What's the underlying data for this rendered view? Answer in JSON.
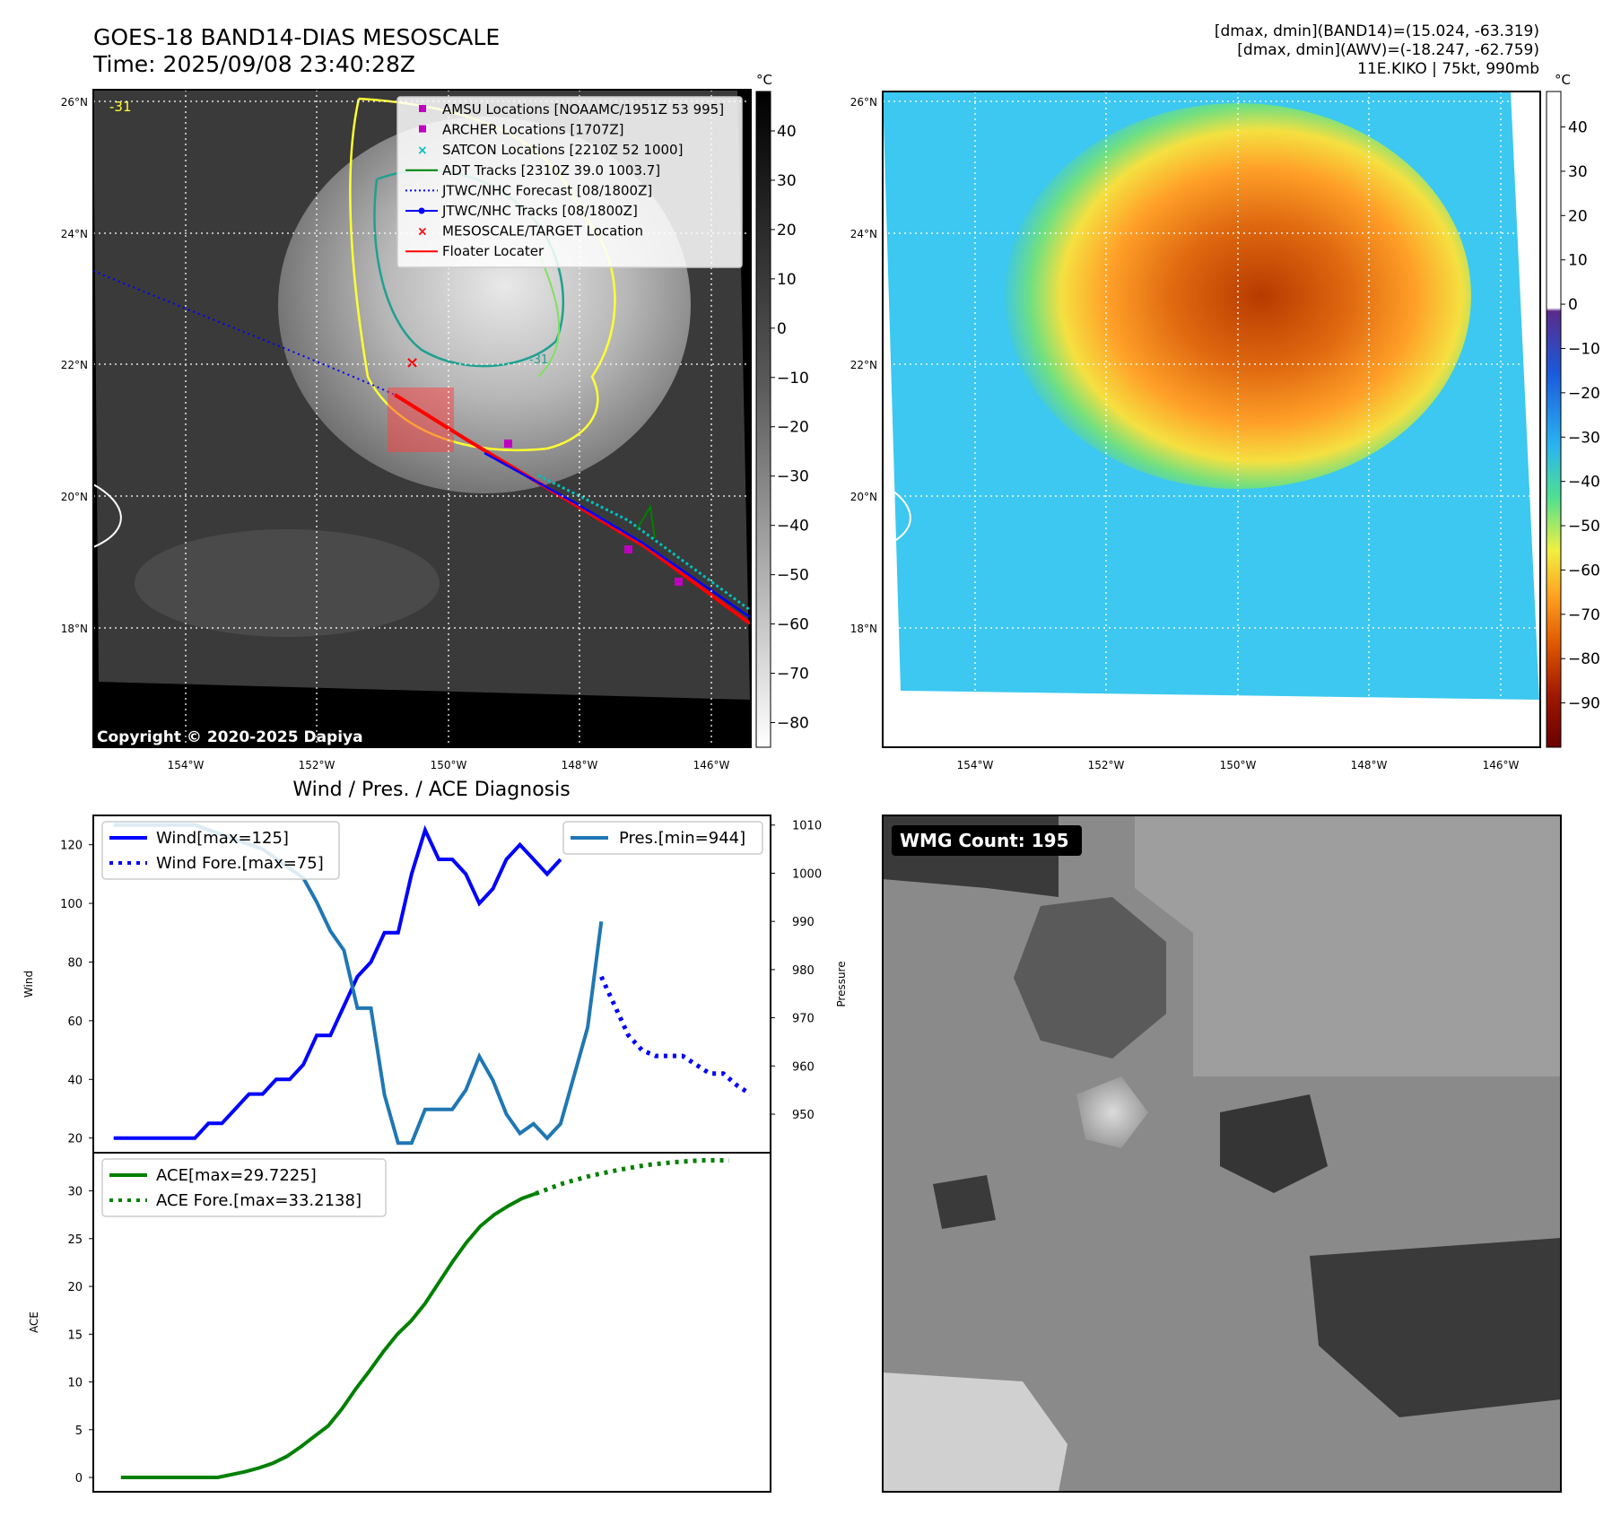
{
  "header": {
    "title_line1": "GOES-18 BAND14-DIAS MESOSCALE",
    "title_line2": "Time: 2025/09/08 23:40:28Z",
    "stats_line1": "[dmax, dmin](BAND14)=(15.024, -63.319)",
    "stats_line2": "[dmax, dmin](AWV)=(-18.247, -62.759)",
    "stats_line3": "11E.KIKO | 75kt, 990mb"
  },
  "maps": {
    "lat_labels": [
      "26°N",
      "24°N",
      "22°N",
      "20°N",
      "18°N"
    ],
    "lon_labels": [
      "154°W",
      "152°W",
      "150°W",
      "148°W",
      "146°W"
    ],
    "copyright": "Copyright © 2020-2025 Dapiya",
    "contour_label": "-31",
    "contour_label2": "-31"
  },
  "ir_colorbar": {
    "unit": "°C",
    "ticks": [
      "40",
      "30",
      "20",
      "10",
      "0",
      "−10",
      "−20",
      "−30",
      "−40",
      "−50",
      "−60",
      "−70",
      "−80"
    ]
  },
  "color_colorbar": {
    "unit": "°C",
    "ticks": [
      "40",
      "30",
      "20",
      "10",
      "0",
      "−10",
      "−20",
      "−30",
      "−40",
      "−50",
      "−60",
      "−70",
      "−80",
      "−90"
    ]
  },
  "map_legend": [
    {
      "label": "AMSU Locations [NOAAMC/1951Z 53 995]",
      "color": "#c000c0",
      "kind": "square"
    },
    {
      "label": "ARCHER Locations [1707Z]",
      "color": "#c000c0",
      "kind": "square"
    },
    {
      "label": "SATCON Locations [2210Z 52 1000]",
      "color": "#00c0c0",
      "kind": "x"
    },
    {
      "label": "ADT Tracks [2310Z 39.0 1003.7]",
      "color": "#008000",
      "kind": "line"
    },
    {
      "label": "JTWC/NHC Forecast [08/1800Z]",
      "color": "#0000ff",
      "kind": "dotted"
    },
    {
      "label": "JTWC/NHC Tracks [08/1800Z]",
      "color": "#0000ff",
      "kind": "linedot"
    },
    {
      "label": "MESOSCALE/TARGET Location",
      "color": "#ff0000",
      "kind": "x"
    },
    {
      "label": "Floater Locater",
      "color": "#ff0000",
      "kind": "line"
    }
  ],
  "wmg": {
    "label": "WMG Count: 195"
  },
  "chart_data": [
    {
      "type": "line",
      "title": "Wind / Pres. / ACE Diagnosis",
      "ylabel": "Wind",
      "ylim": [
        15,
        130
      ],
      "yticks": [
        20,
        40,
        60,
        80,
        100,
        120
      ],
      "x": [
        0,
        1,
        2,
        3,
        4,
        5,
        6,
        7,
        8,
        9,
        10,
        11,
        12,
        13,
        14,
        15,
        16,
        17,
        18,
        19,
        20,
        21,
        22,
        23,
        24,
        25,
        26,
        27,
        28,
        29,
        30,
        31,
        32,
        33,
        34,
        35,
        36,
        37,
        38,
        39,
        40,
        41,
        42,
        43,
        44,
        45,
        46,
        47
      ],
      "series": [
        {
          "name": "Wind[max=125]",
          "style": "solid",
          "color": "#0000ff",
          "x": [
            0,
            1,
            2,
            3,
            4,
            5,
            6,
            7,
            8,
            9,
            10,
            11,
            12,
            13,
            14,
            15,
            16,
            17,
            18,
            19,
            20,
            21,
            22,
            23,
            24,
            25,
            26,
            27,
            28,
            29,
            30,
            31,
            32,
            33
          ],
          "values": [
            20,
            20,
            20,
            20,
            20,
            20,
            20,
            25,
            25,
            30,
            35,
            35,
            40,
            40,
            45,
            55,
            55,
            65,
            75,
            80,
            90,
            90,
            110,
            125,
            115,
            115,
            110,
            100,
            105,
            115,
            120,
            115,
            110,
            115
          ]
        },
        {
          "name": "Wind Fore.[max=75]",
          "style": "dotted",
          "color": "#0000ff",
          "x": [
            36,
            37,
            38,
            39,
            40,
            41,
            42,
            43,
            44,
            45,
            46,
            47
          ],
          "values": [
            75,
            65,
            55,
            50,
            48,
            48,
            48,
            45,
            42,
            42,
            38,
            35
          ]
        },
        {
          "name": "Pres.[min=944]",
          "style": "solid",
          "color": "#1f77b4",
          "axis": "right",
          "x": [
            0,
            1,
            2,
            3,
            4,
            5,
            6,
            7,
            8,
            9,
            10,
            11,
            12,
            13,
            14,
            15,
            16,
            17,
            18,
            19,
            20,
            21,
            22,
            23,
            24,
            25,
            26,
            27,
            28,
            29,
            30,
            31,
            32,
            33,
            34,
            35,
            36
          ],
          "values": [
            1010,
            1010,
            1010,
            1010,
            1010,
            1010,
            1010,
            1009,
            1008,
            1007,
            1006,
            1005,
            1003,
            1001,
            999,
            994,
            988,
            984,
            972,
            972,
            954,
            944,
            944,
            951,
            951,
            951,
            955,
            962,
            957,
            950,
            946,
            948,
            945,
            948,
            958,
            968,
            990
          ]
        }
      ],
      "right_axis": {
        "label": "Pressure",
        "ylim": [
          942,
          1012
        ],
        "yticks": [
          950,
          960,
          970,
          980,
          990,
          1000,
          1010
        ]
      }
    },
    {
      "type": "line",
      "ylabel": "ACE",
      "ylim": [
        -1.5,
        34
      ],
      "yticks": [
        0,
        5,
        10,
        15,
        20,
        25,
        30
      ],
      "series": [
        {
          "name": "ACE[max=29.7225]",
          "style": "solid",
          "color": "#008000",
          "x": [
            0,
            2,
            4,
            6,
            8,
            10,
            12,
            14,
            16,
            18,
            20,
            22,
            24,
            26,
            28,
            30,
            32,
            34,
            36,
            38,
            40,
            42,
            44,
            46,
            48,
            50,
            52,
            54,
            56,
            58,
            60
          ],
          "values": [
            0,
            0,
            0,
            0,
            0,
            0,
            0,
            0,
            0.3,
            0.6,
            1.0,
            1.5,
            2.2,
            3.2,
            4.3,
            5.4,
            7.2,
            9.3,
            11.2,
            13.2,
            15.0,
            16.4,
            18.2,
            20.4,
            22.6,
            24.6,
            26.3,
            27.5,
            28.4,
            29.2,
            29.72
          ]
        },
        {
          "name": "ACE Fore.[max=33.2138]",
          "style": "dotted",
          "color": "#008000",
          "x": [
            60,
            64,
            68,
            72,
            76,
            80,
            84,
            88
          ],
          "values": [
            29.72,
            30.8,
            31.6,
            32.2,
            32.7,
            33.0,
            33.2,
            33.2
          ]
        }
      ]
    }
  ],
  "colors": {
    "wind": "#0000ff",
    "pressure": "#1f77b4",
    "ace": "#008000",
    "track": "#ff0000",
    "contour_yellow": "#ffff33",
    "contour_teal": "#20a090",
    "contour_green": "#80e060"
  }
}
